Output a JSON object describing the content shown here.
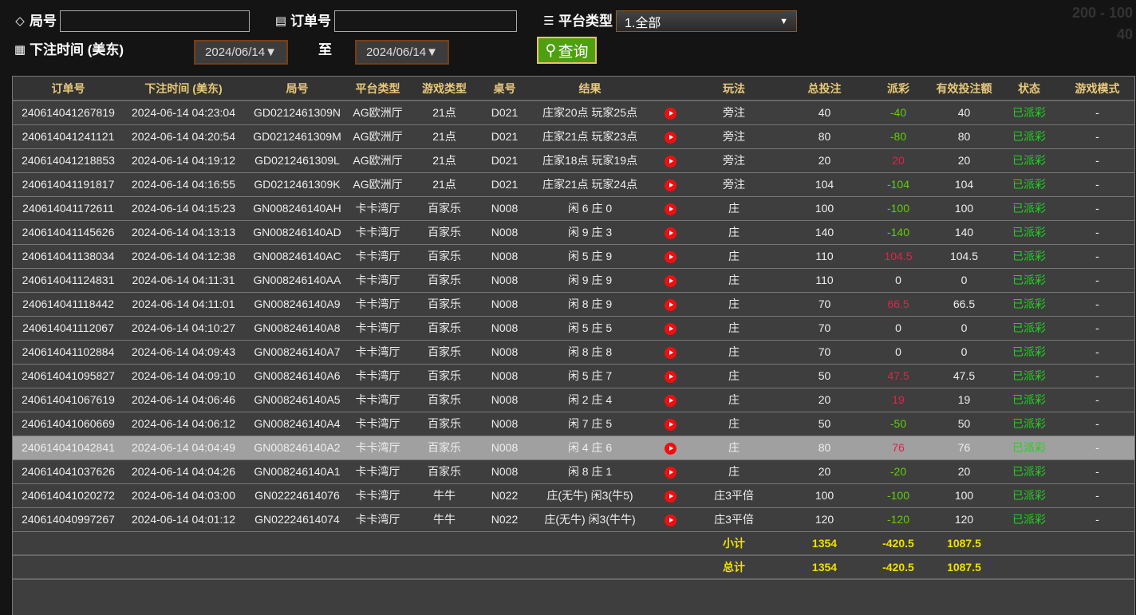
{
  "filters": {
    "round_label": "局号",
    "round_value": "",
    "order_label": "订单号",
    "order_value": "",
    "platform_label": "平台类型",
    "platform_value": "1.全部",
    "time_label": "下注时间 (美东)",
    "date_from": "2024/06/14▼",
    "to_label": "至",
    "date_to": "2024/06/14▼",
    "query_label": "查询"
  },
  "background_text": [
    "200 - 100",
    "40"
  ],
  "table": {
    "headers": [
      "订单号",
      "下注时间 (美东)",
      "局号",
      "平台类型",
      "游戏类型",
      "桌号",
      "结果",
      "",
      "玩法",
      "总投注",
      "派彩",
      "有效投注额",
      "状态",
      "游戏模式"
    ],
    "rows": [
      [
        "240614041267819",
        "2024-06-14 04:23:04",
        "GD0212461309N",
        "AG欧洲厅",
        "21点",
        "D021",
        "庄家20点 玩家25点",
        "旁注",
        "40",
        "-40",
        "40",
        "已派彩",
        "-"
      ],
      [
        "240614041241121",
        "2024-06-14 04:20:54",
        "GD0212461309M",
        "AG欧洲厅",
        "21点",
        "D021",
        "庄家21点 玩家23点",
        "旁注",
        "80",
        "-80",
        "80",
        "已派彩",
        "-"
      ],
      [
        "240614041218853",
        "2024-06-14 04:19:12",
        "GD0212461309L",
        "AG欧洲厅",
        "21点",
        "D021",
        "庄家18点 玩家19点",
        "旁注",
        "20",
        "20",
        "20",
        "已派彩",
        "-"
      ],
      [
        "240614041191817",
        "2024-06-14 04:16:55",
        "GD0212461309K",
        "AG欧洲厅",
        "21点",
        "D021",
        "庄家21点 玩家24点",
        "旁注",
        "104",
        "-104",
        "104",
        "已派彩",
        "-"
      ],
      [
        "240614041172611",
        "2024-06-14 04:15:23",
        "GN008246140AH",
        "卡卡湾厅",
        "百家乐",
        "N008",
        "闲 6 庄 0",
        "庄",
        "100",
        "-100",
        "100",
        "已派彩",
        "-"
      ],
      [
        "240614041145626",
        "2024-06-14 04:13:13",
        "GN008246140AD",
        "卡卡湾厅",
        "百家乐",
        "N008",
        "闲 9 庄 3",
        "庄",
        "140",
        "-140",
        "140",
        "已派彩",
        "-"
      ],
      [
        "240614041138034",
        "2024-06-14 04:12:38",
        "GN008246140AC",
        "卡卡湾厅",
        "百家乐",
        "N008",
        "闲 5 庄 9",
        "庄",
        "110",
        "104.5",
        "104.5",
        "已派彩",
        "-"
      ],
      [
        "240614041124831",
        "2024-06-14 04:11:31",
        "GN008246140AA",
        "卡卡湾厅",
        "百家乐",
        "N008",
        "闲 9 庄 9",
        "庄",
        "110",
        "0",
        "0",
        "已派彩",
        "-"
      ],
      [
        "240614041118442",
        "2024-06-14 04:11:01",
        "GN008246140A9",
        "卡卡湾厅",
        "百家乐",
        "N008",
        "闲 8 庄 9",
        "庄",
        "70",
        "66.5",
        "66.5",
        "已派彩",
        "-"
      ],
      [
        "240614041112067",
        "2024-06-14 04:10:27",
        "GN008246140A8",
        "卡卡湾厅",
        "百家乐",
        "N008",
        "闲 5 庄 5",
        "庄",
        "70",
        "0",
        "0",
        "已派彩",
        "-"
      ],
      [
        "240614041102884",
        "2024-06-14 04:09:43",
        "GN008246140A7",
        "卡卡湾厅",
        "百家乐",
        "N008",
        "闲 8 庄 8",
        "庄",
        "70",
        "0",
        "0",
        "已派彩",
        "-"
      ],
      [
        "240614041095827",
        "2024-06-14 04:09:10",
        "GN008246140A6",
        "卡卡湾厅",
        "百家乐",
        "N008",
        "闲 5 庄 7",
        "庄",
        "50",
        "47.5",
        "47.5",
        "已派彩",
        "-"
      ],
      [
        "240614041067619",
        "2024-06-14 04:06:46",
        "GN008246140A5",
        "卡卡湾厅",
        "百家乐",
        "N008",
        "闲 2 庄 4",
        "庄",
        "20",
        "19",
        "19",
        "已派彩",
        "-"
      ],
      [
        "240614041060669",
        "2024-06-14 04:06:12",
        "GN008246140A4",
        "卡卡湾厅",
        "百家乐",
        "N008",
        "闲 7 庄 5",
        "庄",
        "50",
        "-50",
        "50",
        "已派彩",
        "-"
      ],
      [
        "240614041042841",
        "2024-06-14 04:04:49",
        "GN008246140A2",
        "卡卡湾厅",
        "百家乐",
        "N008",
        "闲 4 庄 6",
        "庄",
        "80",
        "76",
        "76",
        "已派彩",
        "-"
      ],
      [
        "240614041037626",
        "2024-06-14 04:04:26",
        "GN008246140A1",
        "卡卡湾厅",
        "百家乐",
        "N008",
        "闲 8 庄 1",
        "庄",
        "20",
        "-20",
        "20",
        "已派彩",
        "-"
      ],
      [
        "240614041020272",
        "2024-06-14 04:03:00",
        "GN02224614076",
        "卡卡湾厅",
        "牛牛",
        "N022",
        "庄(无牛) 闲3(牛5)",
        "庄3平倍",
        "100",
        "-100",
        "100",
        "已派彩",
        "-"
      ],
      [
        "240614040997267",
        "2024-06-14 04:01:12",
        "GN02224614074",
        "卡卡湾厅",
        "牛牛",
        "N022",
        "庄(无牛) 闲3(牛牛)",
        "庄3平倍",
        "120",
        "-120",
        "120",
        "已派彩",
        "-"
      ]
    ],
    "highlighted_row": 14,
    "subtotal": {
      "label": "小计",
      "total_bet": "1354",
      "payout": "-420.5",
      "valid_bet": "1087.5"
    },
    "total": {
      "label": "总计",
      "total_bet": "1354",
      "payout": "-420.5",
      "valid_bet": "1087.5"
    }
  },
  "colors": {
    "header_text": "#e8c97a",
    "payout_negative": "#5fd000",
    "payout_positive": "#e0234a",
    "status": "#1ed41e",
    "summary": "#f0e000",
    "query_button": "#4ea010"
  }
}
